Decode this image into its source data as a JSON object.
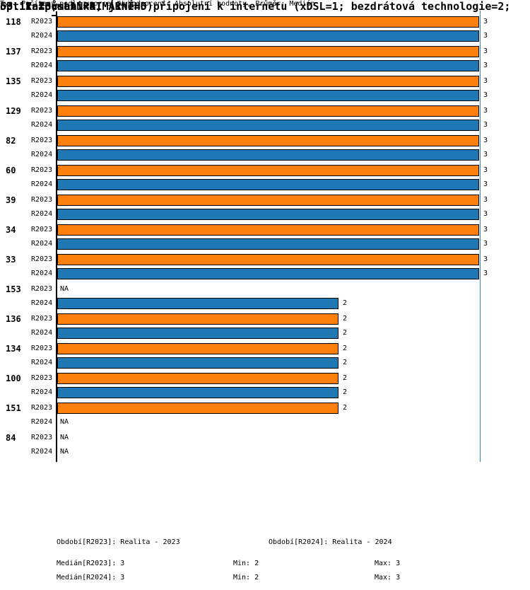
{
  "header": {
    "line1": "53. Informatika",
    "line2": "53.12 Způsob PRIMÁRNÍHO připojení k internetu (xDSL=1; bezdrátová technologie=2;",
    "line3": "optika=3; LAN=4; jiné=5)",
    "meta": "Typ: Počítaný podle vzorce, Vyhodnocení: Absolutní hodnoty, Průměr: Medián"
  },
  "chart_data": {
    "type": "bar",
    "orientation": "horizontal",
    "x_axis": {
      "zero_label": "0",
      "min": 0,
      "max_guide": 3
    },
    "series_names": [
      "R2023",
      "R2024"
    ],
    "colors": {
      "R2023": "#ff7f0e",
      "R2024": "#1f77b4",
      "guide_line": "#2e86c1",
      "bar_border": "#000000"
    },
    "na_label": "NA",
    "groups": [
      {
        "id": "118",
        "values": [
          3,
          3
        ]
      },
      {
        "id": "137",
        "values": [
          3,
          3
        ]
      },
      {
        "id": "135",
        "values": [
          3,
          3
        ]
      },
      {
        "id": "129",
        "values": [
          3,
          3
        ]
      },
      {
        "id": "82",
        "values": [
          3,
          3
        ]
      },
      {
        "id": "60",
        "values": [
          3,
          3
        ]
      },
      {
        "id": "39",
        "values": [
          3,
          3
        ]
      },
      {
        "id": "34",
        "values": [
          3,
          3
        ]
      },
      {
        "id": "33",
        "values": [
          3,
          3
        ]
      },
      {
        "id": "153",
        "values": [
          null,
          2
        ]
      },
      {
        "id": "136",
        "values": [
          2,
          2
        ]
      },
      {
        "id": "134",
        "values": [
          2,
          2
        ]
      },
      {
        "id": "100",
        "values": [
          2,
          2
        ]
      },
      {
        "id": "151",
        "values": [
          2,
          null
        ]
      },
      {
        "id": "84",
        "values": [
          null,
          null
        ]
      }
    ]
  },
  "footer": {
    "period_2023": "Období[R2023]: Realita - 2023",
    "period_2024": "Období[R2024]: Realita - 2024",
    "stats_rows": [
      {
        "label": "Medián[R2023]: 3",
        "min": "Min: 2",
        "max": "Max: 3"
      },
      {
        "label": "Medián[R2024]: 3",
        "min": "Min: 2",
        "max": "Max: 3"
      }
    ]
  }
}
